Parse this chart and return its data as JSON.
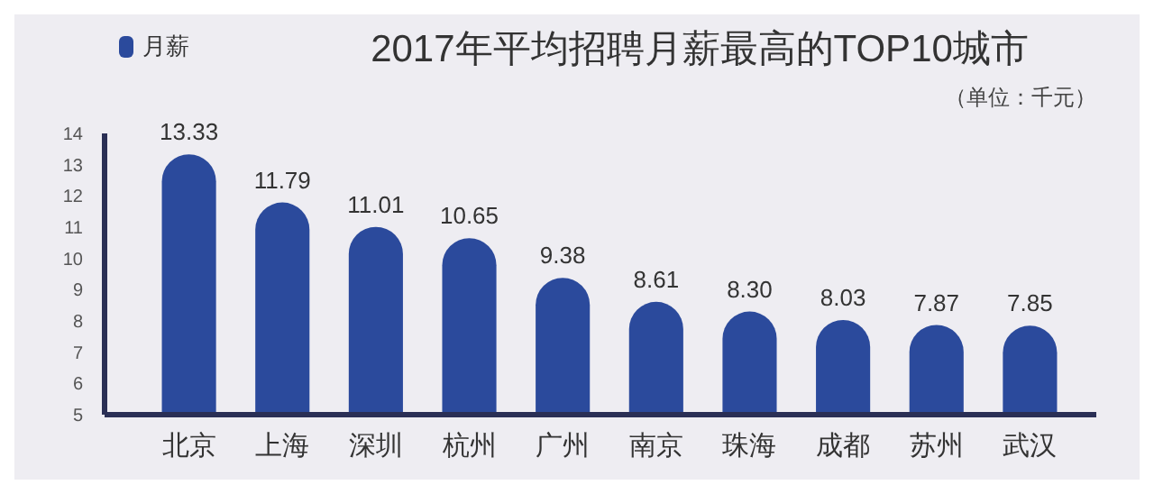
{
  "chart_data": {
    "type": "bar",
    "title": "2017年平均招聘月薪最高的TOP10城市",
    "subtitle": "（单位：千元）",
    "categories": [
      "北京",
      "上海",
      "深圳",
      "杭州",
      "广州",
      "南京",
      "珠海",
      "成都",
      "苏州",
      "武汉"
    ],
    "series": [
      {
        "name": "月薪",
        "color": "#2b4a9c",
        "values": [
          13.33,
          11.79,
          11.01,
          10.65,
          9.38,
          8.61,
          8.3,
          8.03,
          7.87,
          7.85
        ]
      }
    ],
    "value_labels": [
      "13.33",
      "11.79",
      "11.01",
      "10.65",
      "9.38",
      "8.61",
      "8.30",
      "8.03",
      "7.87",
      "7.85"
    ],
    "ylim": [
      5,
      14
    ],
    "yticks": [
      5,
      6,
      7,
      8,
      9,
      10,
      11,
      12,
      13,
      14
    ],
    "legend": "top left",
    "grid": false
  }
}
